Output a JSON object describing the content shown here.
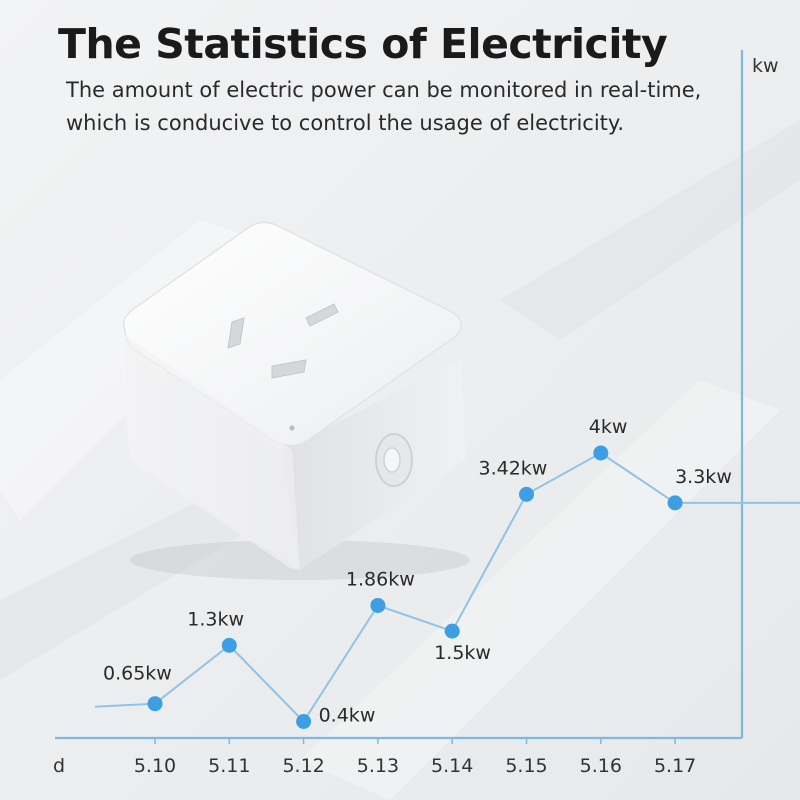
{
  "title": "The Statistics of Electricity",
  "subtitle": "The amount of electric power can be monitored in real-time, which is conducive to control the usage of electricity.",
  "product": {
    "name": "smart-plug"
  },
  "colors": {
    "line": "#8fc4e6",
    "point": "#3d9ee4",
    "axis": "#7db9e0"
  },
  "chart_data": {
    "type": "line",
    "xlabel": "d",
    "ylabel": "kw",
    "categories": [
      "5.10",
      "5.11",
      "5.12",
      "5.13",
      "5.14",
      "5.15",
      "5.16",
      "5.17"
    ],
    "values": [
      0.65,
      1.3,
      0.4,
      1.86,
      1.5,
      3.42,
      4,
      3.3
    ],
    "labels": [
      "0.65kw",
      "1.3kw",
      "0.4kw",
      "1.86kw",
      "1.5kw",
      "3.42kw",
      "4kw",
      "3.3kw"
    ],
    "ylim": [
      0,
      4.5
    ],
    "grid": false,
    "legend": "none"
  }
}
